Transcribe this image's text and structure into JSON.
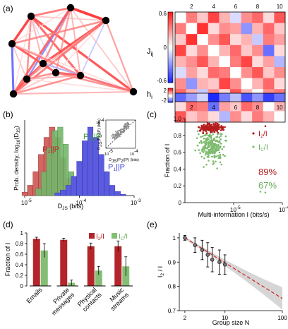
{
  "panels": {
    "a": {
      "label": "(a)"
    },
    "b": {
      "label": "(b)"
    },
    "c": {
      "label": "(c)"
    },
    "d": {
      "label": "(d)"
    },
    "e": {
      "label": "(e)"
    }
  },
  "colors": {
    "red": "#c0282c",
    "green": "#7ab86b",
    "blue": "#3b3fd8",
    "gray": "#9a9a9a"
  },
  "network": {
    "nodes": [
      {
        "id": 1
      },
      {
        "id": 2
      },
      {
        "id": 3
      },
      {
        "id": 4
      },
      {
        "id": 5
      },
      {
        "id": 6
      },
      {
        "id": 7
      },
      {
        "id": 8
      },
      {
        "id": 9
      },
      {
        "id": 10
      }
    ]
  },
  "matrix": {
    "ticks_top": [
      "2",
      "4",
      "6",
      "8",
      "10"
    ],
    "ticks_right": [
      "2",
      "4",
      "6",
      "8",
      "10"
    ],
    "ticks_bottom": [
      "2",
      "4",
      "6",
      "8",
      "10"
    ],
    "J_label_main": "J",
    "J_label_sub": "ij",
    "h_label_main": "h",
    "h_label_sub": "i",
    "colorbar_J": [
      "0.6",
      "0",
      "-0.6"
    ],
    "colorbar_h": [
      "2",
      "-2"
    ],
    "J_values": [
      [
        0,
        0.35,
        0.15,
        0.5,
        0.2,
        -0.1,
        0.3,
        0.4,
        0.1,
        0.45
      ],
      [
        0.35,
        0,
        0.55,
        0.1,
        0.3,
        0.25,
        -0.3,
        0.2,
        0.4,
        0.15
      ],
      [
        0.15,
        0.55,
        0,
        0.3,
        0.45,
        0.1,
        0.2,
        -0.15,
        0.35,
        0.25
      ],
      [
        0.5,
        0.1,
        0.3,
        0,
        0.2,
        0.4,
        0.15,
        0.3,
        -0.4,
        0.1
      ],
      [
        0.2,
        0.3,
        0.45,
        0.2,
        0,
        0.35,
        0.5,
        0.1,
        0.25,
        -0.2
      ],
      [
        -0.1,
        0.25,
        0.1,
        0.4,
        0.35,
        0,
        0.3,
        0.45,
        0.15,
        0.3
      ],
      [
        0.3,
        -0.3,
        0.2,
        0.15,
        0.5,
        0.3,
        0,
        0.2,
        0.4,
        0.1
      ],
      [
        0.4,
        0.2,
        -0.15,
        0.3,
        0.1,
        0.45,
        0.2,
        0,
        0.3,
        0.35
      ],
      [
        0.1,
        0.4,
        0.35,
        -0.4,
        0.25,
        0.15,
        0.4,
        0.3,
        0,
        0.2
      ],
      [
        0.45,
        0.15,
        0.25,
        0.1,
        -0.2,
        0.3,
        0.1,
        0.35,
        0.2,
        0
      ]
    ],
    "h_values": [
      -1.4,
      -0.9,
      -0.4,
      -2.0,
      -1.2,
      -0.6,
      -1.6,
      -1.0,
      -1.8,
      -1.3
    ]
  },
  "chart_data": [
    {
      "panel": "b",
      "type": "bar",
      "xlabel_main": "D",
      "xlabel_sub": "JS",
      "xlabel_unit": " (bits)",
      "ylabel": "Prob. density, log",
      "ylabel_sub": "10",
      "ylabel_rest": "(D",
      "ylabel_sub2": "JS",
      "ylabel_end": ")",
      "x_scale": "log",
      "xlim": [
        1e-05,
        0.001
      ],
      "x_ticks": [
        "10",
        "10",
        "10"
      ],
      "x_tick_exps": [
        "-5",
        "-4",
        "-3"
      ],
      "series": [
        {
          "name": "P2||P",
          "label_main": "P",
          "label_sub": "2",
          "label_rest": "||P",
          "color": "red",
          "centers_log10": [
            -5.0,
            -4.9,
            -4.8,
            -4.7,
            -4.6,
            -4.5,
            -4.4,
            -4.3,
            -4.2,
            -4.1
          ],
          "heights": [
            0.05,
            0.15,
            0.35,
            0.6,
            0.85,
            1.0,
            0.85,
            0.55,
            0.25,
            0.08
          ]
        },
        {
          "name": "PC||P",
          "label_main": "P",
          "label_sub": "C",
          "label_rest": "||P",
          "color": "green",
          "centers_log10": [
            -4.75,
            -4.65,
            -4.55,
            -4.45,
            -4.35,
            -4.25,
            -4.15,
            -4.05
          ],
          "heights": [
            0.1,
            0.35,
            0.7,
            0.95,
            1.0,
            0.75,
            0.35,
            0.1
          ]
        },
        {
          "name": "P1||P",
          "label_main": "P",
          "label_sub": "1",
          "label_rest": "||P",
          "color": "blue",
          "centers_log10": [
            -4.4,
            -4.3,
            -4.2,
            -4.1,
            -4.0,
            -3.9,
            -3.8,
            -3.7,
            -3.6,
            -3.5,
            -3.4,
            -3.3,
            -3.2
          ],
          "heights": [
            0.04,
            0.08,
            0.15,
            0.28,
            0.5,
            0.8,
            1.0,
            0.85,
            0.6,
            0.35,
            0.15,
            0.06,
            0.02
          ]
        }
      ],
      "inset": {
        "type": "scatter",
        "xlabel": "D",
        "xlabel_sub": "JS",
        "xlabel_rest": "(P",
        "xlabel_sub2": "2",
        "xlabel_end": "||P) (bits)",
        "ylabel": "D",
        "ylabel_sub": "JS",
        "ylabel_rest": "(P",
        "ylabel_sub2": "C",
        "ylabel_end": "||P) (bits)",
        "x_ticks": [
          "10",
          "10"
        ],
        "x_tick_exps": [
          "-5",
          "-4"
        ],
        "y_ticks": [
          "10",
          "10"
        ],
        "y_tick_exps": [
          "-5",
          "-4"
        ]
      }
    },
    {
      "panel": "c",
      "type": "scatter",
      "xlabel": "Multi-information I (bits/s)",
      "ylabel": "Fraction of I",
      "x_scale": "log",
      "xlim": [
        1e-06,
        0.0001
      ],
      "ylim": [
        0,
        1
      ],
      "x_ticks": [
        "10",
        "10"
      ],
      "x_tick_exps": [
        "-5",
        "-4"
      ],
      "y_ticks": [
        "0",
        "0.2",
        "0.4",
        "0.6",
        "0.8",
        "1.0"
      ],
      "series": [
        {
          "name": "I2/I",
          "label_main": "I",
          "label_sub": "2",
          "label_rest": "/I",
          "color": "red",
          "summary": "89%",
          "y_mean": 0.89,
          "y_spread": 0.04
        },
        {
          "name": "IC/I",
          "label_main": "I",
          "label_sub": "C",
          "label_rest": "/I",
          "color": "green",
          "summary": "67%",
          "y_mean": 0.67,
          "y_spread": 0.12
        }
      ]
    },
    {
      "panel": "d",
      "type": "bar",
      "ylabel": "Fraction of I",
      "ylim": [
        0,
        1
      ],
      "y_ticks": [
        "0",
        "0.2",
        "0.4",
        "0.6",
        "0.8",
        "1"
      ],
      "categories": [
        "Emails",
        "Private messages",
        "Physical contacts",
        "Music streams"
      ],
      "category_lines": [
        [
          "Emails"
        ],
        [
          "Private",
          "messages"
        ],
        [
          "Physical",
          "contacts"
        ],
        [
          "Music",
          "streams"
        ]
      ],
      "series": [
        {
          "name": "I2/I",
          "label_main": "I",
          "label_sub": "2",
          "label_rest": "/I",
          "color": "red",
          "values": [
            0.89,
            0.87,
            0.75,
            0.75
          ],
          "errors": [
            0.03,
            0.03,
            0.06,
            0.1
          ]
        },
        {
          "name": "IC/I",
          "label_main": "I",
          "label_sub": "C",
          "label_rest": "/I",
          "color": "green",
          "values": [
            0.67,
            0.06,
            0.29,
            0.37
          ],
          "errors": [
            0.13,
            0.05,
            0.08,
            0.18
          ]
        }
      ]
    },
    {
      "panel": "e",
      "type": "line",
      "xlabel": "Group size N",
      "ylabel": "I",
      "ylabel_sub": "2",
      "ylabel_rest": " / I",
      "x_scale": "log",
      "xlim": [
        1.6,
        100
      ],
      "ylim": [
        0.7,
        1.02
      ],
      "x_ticks": [
        "2",
        "10",
        "100"
      ],
      "y_ticks": [
        "0.7",
        "0.8",
        "0.9",
        "1"
      ],
      "points": {
        "x": [
          2,
          3,
          4,
          5,
          6,
          8,
          10
        ],
        "y": [
          1.0,
          0.97,
          0.95,
          0.93,
          0.91,
          0.9,
          0.89
        ],
        "err": [
          0.01,
          0.03,
          0.04,
          0.05,
          0.05,
          0.05,
          0.04
        ]
      },
      "fit_end_y": 0.75
    }
  ]
}
